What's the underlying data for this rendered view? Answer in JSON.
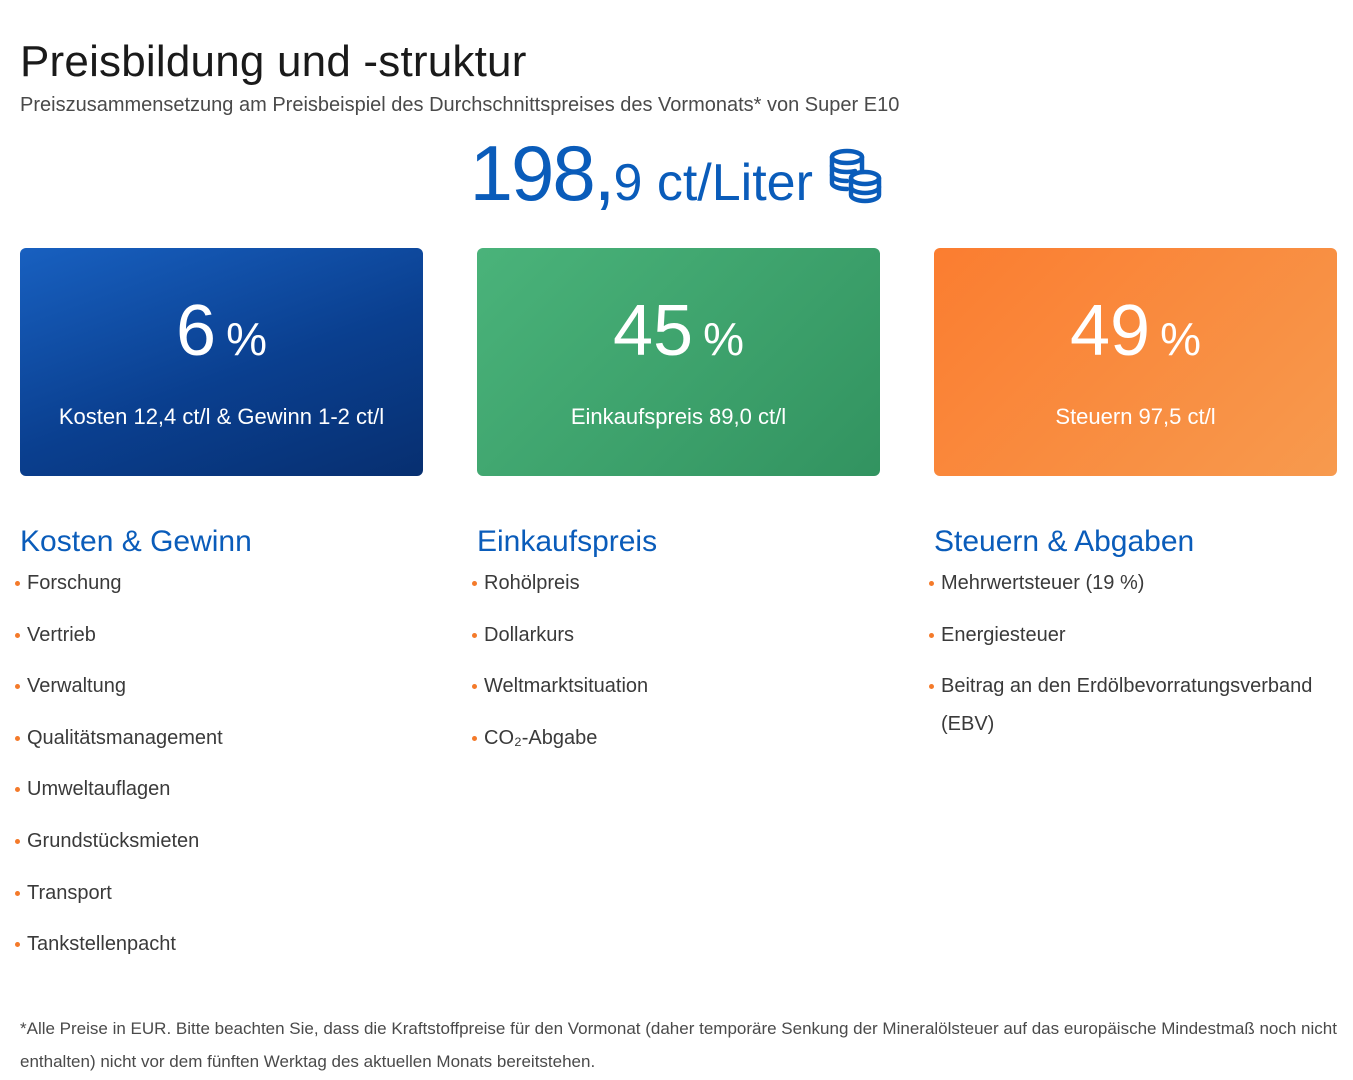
{
  "title": "Preisbildung und -struktur",
  "subtitle": "Preiszusammensetzung am Preisbeispiel des Durchschnittspreises des Vormonats* von Super E10",
  "price": {
    "integer": "198,",
    "decimal": "9",
    "unit": " ct/Liter",
    "icon": "coins-icon"
  },
  "cards": [
    {
      "percent": "6",
      "symbol": "%",
      "description": "Kosten 12,4 ct/l & Gewinn 1-2 ct/l",
      "color": "#0a3f8f"
    },
    {
      "percent": "45",
      "symbol": "%",
      "description": "Einkaufspreis 89,0 ct/l",
      "color": "#3aa06a"
    },
    {
      "percent": "49",
      "symbol": "%",
      "description": "Steuern 97,5 ct/l",
      "color": "#f98a3c"
    }
  ],
  "columns": [
    {
      "title": "Kosten & Gewinn",
      "items": [
        "Forschung",
        "Vertrieb",
        "Verwaltung",
        "Qualitätsmanagement",
        "Umweltauflagen",
        "Grundstücksmieten",
        "Transport",
        "Tankstellenpacht"
      ]
    },
    {
      "title": "Einkaufspreis",
      "items": [
        "Rohölpreis",
        "Dollarkurs",
        "Weltmarktsituation",
        "CO₂-Abgabe"
      ]
    },
    {
      "title": "Steuern & Abgaben",
      "items": [
        "Mehrwertsteuer (19 %)",
        "Energiesteuer",
        "Beitrag an den Erdölbevorratungsverband (EBV)"
      ]
    }
  ],
  "footnote": "*Alle Preise in EUR. Bitte beachten Sie, dass die Kraftstoffpreise für den Vormonat (daher temporäre Senkung der Mineralölsteuer auf das europäische Mindestmaß noch nicht enthalten) nicht vor dem fünften Werktag des aktuellen Monats bereitstehen.",
  "colors": {
    "accent_blue": "#0a5cba",
    "bullet_orange": "#f47a2a"
  }
}
